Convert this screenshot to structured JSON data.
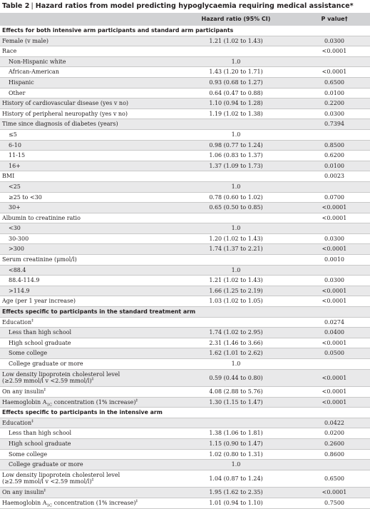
{
  "title": {
    "table_number": "Table 2",
    "text": "Hazard ratios from model predicting hypoglycaemia requiring medical assistance*"
  },
  "header": {
    "hazard_ratio": "Hazard ratio (95% CI)",
    "p_value": "P value†"
  },
  "rows": [
    {
      "type": "section",
      "label": "Effects for both intensive arm participants and standard arm participants"
    },
    {
      "type": "row",
      "label": "Female (v male)",
      "hr": "1.21 (1.02 to 1.43)",
      "p": "0.0300"
    },
    {
      "type": "row",
      "label": "Race",
      "hr": "",
      "p": "<0.0001"
    },
    {
      "type": "sub",
      "label": "Non-Hispanic white",
      "hr": "1.0",
      "p": ""
    },
    {
      "type": "sub",
      "label": "African-American",
      "hr": "1.43 (1.20 to 1.71)",
      "p": "<0.0001"
    },
    {
      "type": "sub",
      "label": "Hispanic",
      "hr": "0.93 (0.68 to 1.27)",
      "p": "0.6500"
    },
    {
      "type": "sub",
      "label": "Other",
      "hr": "0.64 (0.47 to 0.88)",
      "p": "0.0100"
    },
    {
      "type": "row",
      "label": "History of cardiovascular disease (yes v no)",
      "hr": "1.10 (0.94 to 1.28)",
      "p": "0.2200"
    },
    {
      "type": "row",
      "label": "History of peripheral neuropathy (yes v no)",
      "hr": "1.19 (1.02 to 1.38)",
      "p": "0.0300"
    },
    {
      "type": "row",
      "label": "Time since diagnosis of diabetes (years)",
      "hr": "",
      "p": "0.7394"
    },
    {
      "type": "sub",
      "label": "≤5",
      "hr": "1.0",
      "p": ""
    },
    {
      "type": "sub",
      "label": "6-10",
      "hr": "0.98 (0.77 to 1.24)",
      "p": "0.8500"
    },
    {
      "type": "sub",
      "label": "11-15",
      "hr": "1.06 (0.83 to 1.37)",
      "p": "0.6200"
    },
    {
      "type": "sub",
      "label": "16+",
      "hr": "1.37 (1.09 to 1.73)",
      "p": "0.0100"
    },
    {
      "type": "row",
      "label": "BMI",
      "hr": "",
      "p": "0.0023"
    },
    {
      "type": "sub",
      "label": "<25",
      "hr": "1.0",
      "p": ""
    },
    {
      "type": "sub",
      "label": "≥25 to <30",
      "hr": "0.78 (0.60 to 1.02)",
      "p": "0.0700"
    },
    {
      "type": "sub",
      "label": "30+",
      "hr": "0.65 (0.50 to 0.85)",
      "p": "<0.0001"
    },
    {
      "type": "row",
      "label": "Albumin to creatinine ratio",
      "hr": "",
      "p": "<0.0001"
    },
    {
      "type": "sub",
      "label": "<30",
      "hr": "1.0",
      "p": ""
    },
    {
      "type": "sub",
      "label": "30-300",
      "hr": "1.20 (1.02 to 1.43)",
      "p": "0.0300"
    },
    {
      "type": "sub",
      "label": ">300",
      "hr": "1.74 (1.37 to 2.21)",
      "p": "<0.0001"
    },
    {
      "type": "row",
      "label": "Serum creatinine (μmol/l)",
      "hr": "",
      "p": "0.0010"
    },
    {
      "type": "sub",
      "label": "<88.4",
      "hr": "1.0",
      "p": ""
    },
    {
      "type": "sub",
      "label": "88.4-114.9",
      "hr": "1.21 (1.02 to 1.43)",
      "p": "0.0300"
    },
    {
      "type": "sub",
      "label": ">114.9",
      "hr": "1.66 (1.25 to 2.19)",
      "p": "<0.0001"
    },
    {
      "type": "row",
      "label": "Age (per 1 year increase)",
      "hr": "1.03 (1.02 to 1.05)",
      "p": "<0.0001"
    },
    {
      "type": "section",
      "label": "Effects specific to participants in the standard treatment arm"
    },
    {
      "type": "row",
      "label": "Education",
      "sup": "‡",
      "hr": "",
      "p": "0.0274"
    },
    {
      "type": "sub",
      "label": "Less than high school",
      "hr": "1.74 (1.02 to 2.95)",
      "p": "0.0400"
    },
    {
      "type": "sub",
      "label": "High school graduate",
      "hr": "2.31 (1.46 to 3.66)",
      "p": "<0.0001"
    },
    {
      "type": "sub",
      "label": "Some college",
      "hr": "1.62 (1.01 to 2.62)",
      "p": "0.0500"
    },
    {
      "type": "sub",
      "label": "College graduate or more",
      "hr": "1.0",
      "p": ""
    },
    {
      "type": "tall",
      "label": "Low density lipoprotein cholesterol level",
      "label2": "(≥2.59 mmol/l v <2.59 mmol/l)",
      "sup": "‡",
      "hr": "0.59 (0.44 to 0.80)",
      "p": "<0.0001"
    },
    {
      "type": "row",
      "label": "On any insulin",
      "sup": "‡",
      "hr": "4.08 (2.88 to 5.76)",
      "p": "<0.0001"
    },
    {
      "type": "hb",
      "label_pre": "Haemoglobin A",
      "label_sub": "1C",
      "label_post": " concentration (1% increase)",
      "sup": "‡",
      "hr": "1.30 (1.15 to 1.47)",
      "p": "<0.0001"
    },
    {
      "type": "section",
      "label": "Effects specific to participants in the intensive arm"
    },
    {
      "type": "row",
      "label": "Education",
      "sup": "‡",
      "hr": "",
      "p": "0.0422"
    },
    {
      "type": "sub",
      "label": "Less than high school",
      "hr": "1.38 (1.06 to 1.81)",
      "p": "0.0200"
    },
    {
      "type": "sub",
      "label": "High school graduate",
      "hr": "1.15 (0.90 to 1.47)",
      "p": "0.2600"
    },
    {
      "type": "sub",
      "label": "Some college",
      "hr": "1.02 (0.80 to 1.31)",
      "p": "0.8600"
    },
    {
      "type": "sub",
      "label": "College graduate or more",
      "hr": "1.0",
      "p": ""
    },
    {
      "type": "tall",
      "label": "Low density lipoprotein cholesterol level",
      "label2": "(≥2.59 mmol/l v <2.59 mmol/l)",
      "sup": "‡",
      "hr": "1.04 (0.87 to 1.24)",
      "p": "0.6500"
    },
    {
      "type": "row",
      "label": "On any insulin",
      "sup": "‡",
      "hr": "1.95 (1.62 to 2.35)",
      "p": "<0.0001"
    },
    {
      "type": "hb",
      "label_pre": "Haemoglobin A",
      "label_sub": "1C",
      "label_post": " concentration (1% increase)",
      "sup": "‡",
      "hr": "1.01 (0.94 to 1.10)",
      "p": "0.7500"
    }
  ]
}
